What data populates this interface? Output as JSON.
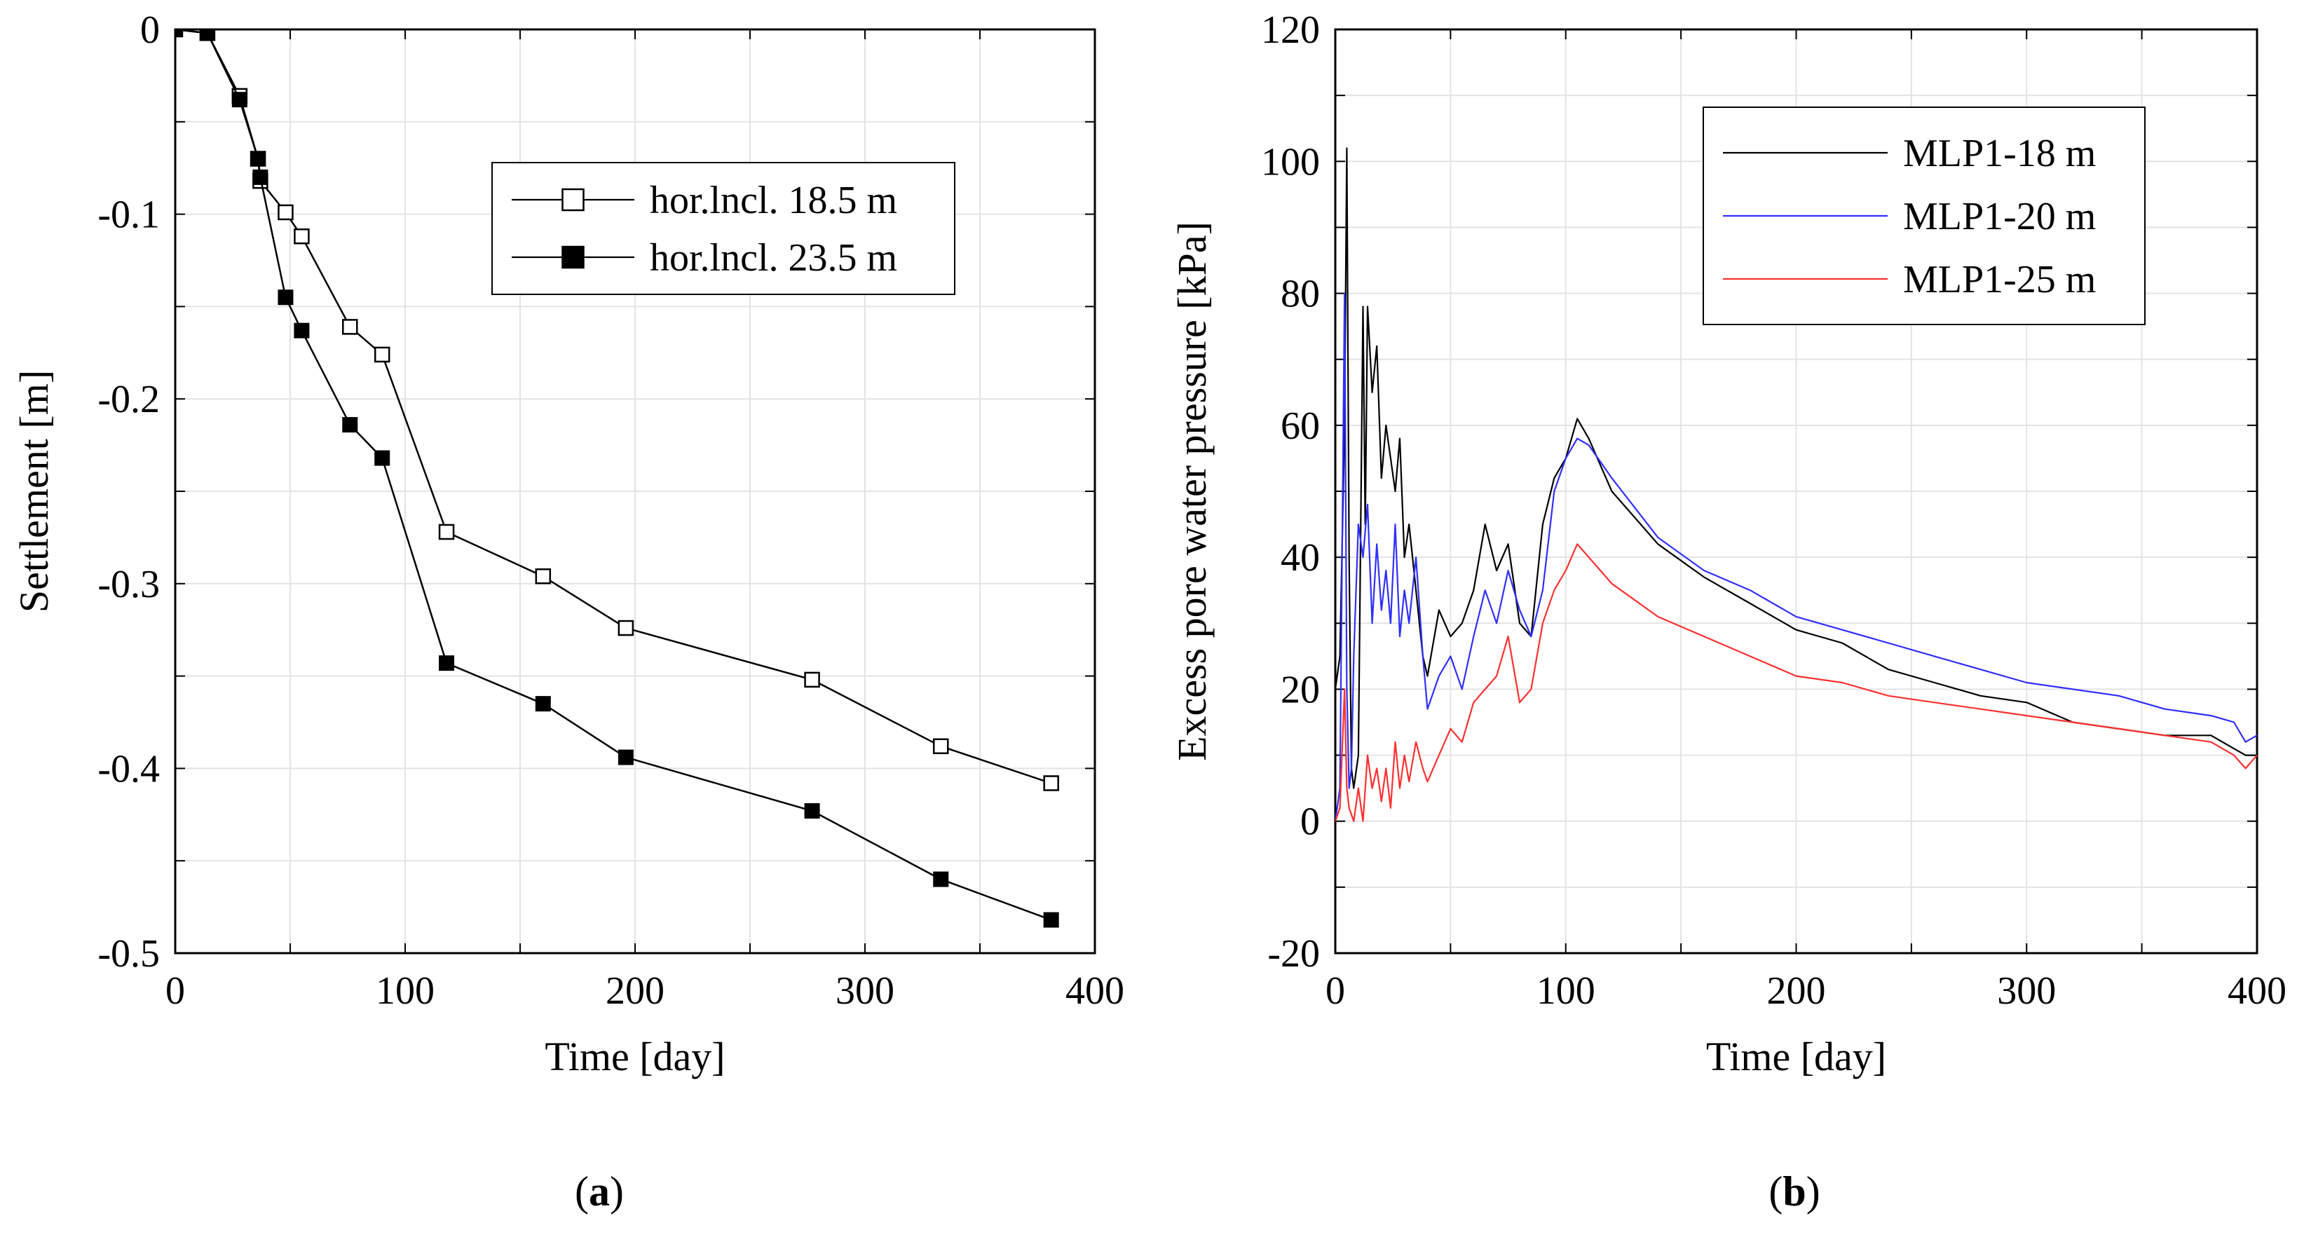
{
  "panels": [
    {
      "id": "a",
      "caption_letter": "a",
      "chart_data": {
        "type": "line",
        "title": "",
        "xlabel": "Time [day]",
        "ylabel": "Settlement [m]",
        "xlim": [
          0,
          400
        ],
        "ylim": [
          -0.5,
          0
        ],
        "xticks": [
          0,
          100,
          200,
          300,
          400
        ],
        "yticks": [
          0,
          -0.1,
          -0.2,
          -0.3,
          -0.4,
          -0.5
        ],
        "xtick_labels": [
          "0",
          "100",
          "200",
          "300",
          "400"
        ],
        "ytick_labels": [
          "0",
          "-0.1",
          "-0.2",
          "-0.3",
          "-0.4",
          "-0.5"
        ],
        "grid": true,
        "legend_position": "upper-right",
        "series": [
          {
            "name": "hor.lncl. 18.5 m",
            "marker": "open-square",
            "color": "#000000",
            "x": [
              0,
              14,
              28,
              36,
              37,
              48,
              55,
              76,
              90,
              118,
              160,
              196,
              277,
              333,
              381
            ],
            "y": [
              0,
              -0.002,
              -0.036,
              -0.07,
              -0.082,
              -0.099,
              -0.112,
              -0.161,
              -0.176,
              -0.272,
              -0.296,
              -0.324,
              -0.352,
              -0.388,
              -0.408
            ]
          },
          {
            "name": "hor.lncl. 23.5 m",
            "marker": "filled-square",
            "color": "#000000",
            "x": [
              0,
              14,
              28,
              36,
              37,
              48,
              55,
              76,
              90,
              118,
              160,
              196,
              277,
              333,
              381
            ],
            "y": [
              0,
              -0.002,
              -0.038,
              -0.07,
              -0.08,
              -0.145,
              -0.163,
              -0.214,
              -0.232,
              -0.343,
              -0.365,
              -0.394,
              -0.423,
              -0.46,
              -0.482
            ]
          }
        ]
      }
    },
    {
      "id": "b",
      "caption_letter": "b",
      "chart_data": {
        "type": "line",
        "title": "",
        "xlabel": "Time [day]",
        "ylabel": "Excess pore water pressure [kPa]",
        "xlim": [
          0,
          400
        ],
        "ylim": [
          -20,
          120
        ],
        "xticks": [
          0,
          100,
          200,
          300,
          400
        ],
        "yticks": [
          -20,
          0,
          20,
          40,
          60,
          80,
          100,
          120
        ],
        "xtick_labels": [
          "0",
          "100",
          "200",
          "300",
          "400"
        ],
        "ytick_labels": [
          "-20",
          "0",
          "20",
          "40",
          "60",
          "80",
          "100",
          "120"
        ],
        "grid": true,
        "legend_position": "upper-right",
        "series": [
          {
            "name": "MLP1-18 m",
            "color": "#000000",
            "x": [
              0,
              2,
              4,
              5,
              6,
              7,
              8,
              10,
              12,
              13,
              14,
              16,
              18,
              20,
              22,
              24,
              26,
              28,
              30,
              32,
              35,
              38,
              40,
              45,
              50,
              55,
              60,
              65,
              70,
              75,
              80,
              85,
              90,
              95,
              100,
              105,
              110,
              120,
              140,
              160,
              180,
              200,
              220,
              240,
              260,
              280,
              300,
              320,
              340,
              360,
              380,
              390,
              395,
              400
            ],
            "y": [
              20,
              25,
              60,
              102,
              40,
              8,
              5,
              10,
              78,
              45,
              78,
              65,
              72,
              52,
              60,
              55,
              50,
              58,
              40,
              45,
              35,
              25,
              22,
              32,
              28,
              30,
              35,
              45,
              38,
              42,
              30,
              28,
              45,
              52,
              55,
              61,
              58,
              50,
              42,
              37,
              33,
              29,
              27,
              23,
              21,
              19,
              18,
              15,
              14,
              13,
              13,
              11,
              10,
              10
            ]
          },
          {
            "name": "MLP1-20 m",
            "color": "#2f2fff",
            "x": [
              0,
              2,
              4,
              5,
              6,
              7,
              8,
              10,
              12,
              14,
              16,
              18,
              20,
              22,
              24,
              26,
              28,
              30,
              32,
              35,
              38,
              40,
              45,
              50,
              55,
              60,
              65,
              70,
              75,
              80,
              85,
              90,
              95,
              100,
              105,
              110,
              120,
              140,
              160,
              180,
              200,
              220,
              240,
              260,
              280,
              300,
              320,
              340,
              360,
              380,
              390,
              395,
              400
            ],
            "y": [
              0,
              5,
              80,
              20,
              5,
              8,
              25,
              45,
              40,
              48,
              30,
              42,
              32,
              38,
              30,
              45,
              28,
              35,
              30,
              40,
              25,
              17,
              22,
              25,
              20,
              28,
              35,
              30,
              38,
              32,
              28,
              35,
              50,
              55,
              58,
              57,
              52,
              43,
              38,
              35,
              31,
              29,
              27,
              25,
              23,
              21,
              20,
              19,
              17,
              16,
              15,
              12,
              13
            ]
          },
          {
            "name": "MLP1-25 m",
            "color": "#ff3030",
            "x": [
              0,
              2,
              4,
              5,
              6,
              8,
              10,
              12,
              14,
              16,
              18,
              20,
              22,
              24,
              26,
              28,
              30,
              32,
              35,
              38,
              40,
              45,
              50,
              55,
              60,
              65,
              70,
              75,
              80,
              85,
              90,
              95,
              100,
              105,
              110,
              120,
              140,
              160,
              180,
              200,
              220,
              240,
              260,
              280,
              300,
              320,
              340,
              360,
              380,
              390,
              395,
              400
            ],
            "y": [
              0,
              2,
              20,
              5,
              2,
              0,
              5,
              0,
              10,
              5,
              8,
              3,
              8,
              2,
              12,
              5,
              10,
              6,
              12,
              8,
              6,
              10,
              14,
              12,
              18,
              20,
              22,
              28,
              18,
              20,
              30,
              35,
              38,
              42,
              40,
              36,
              31,
              28,
              25,
              22,
              21,
              19,
              18,
              17,
              16,
              15,
              14,
              13,
              12,
              10,
              8,
              10
            ]
          }
        ]
      }
    }
  ]
}
